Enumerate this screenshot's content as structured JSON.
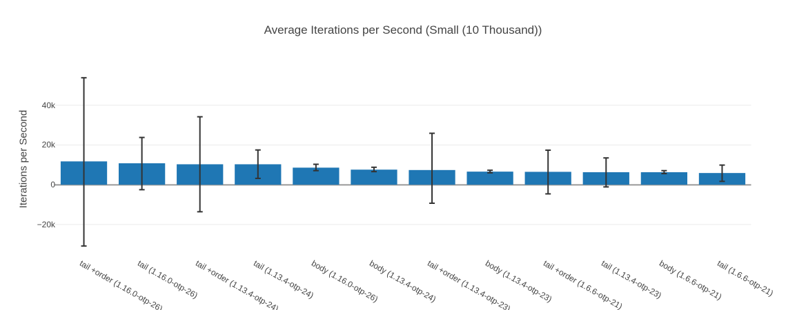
{
  "chart_data": {
    "type": "bar",
    "title": "Average Iterations per Second (Small (10 Thousand))",
    "xlabel": "",
    "ylabel": "Iterations per Second",
    "categories": [
      "tail +order (1.16.0-otp-26)",
      "tail (1.16.0-otp-26)",
      "tail +order (1.13.4-otp-24)",
      "tail (1.13.4-otp-24)",
      "body (1.16.0-otp-26)",
      "body (1.13.4-otp-24)",
      "tail +order (1.13.4-otp-23)",
      "body (1.13.4-otp-23)",
      "tail +order (1.6.6-otp-21)",
      "tail (1.13.4-otp-23)",
      "body (1.6.6-otp-21)",
      "tail (1.6.6-otp-21)"
    ],
    "values": [
      11750,
      10800,
      10300,
      10300,
      8600,
      7600,
      7400,
      6600,
      6500,
      6300,
      6300,
      5900
    ],
    "error_plus": [
      42100,
      13000,
      23900,
      7200,
      1700,
      1200,
      18500,
      700,
      10900,
      7200,
      800,
      4000
    ],
    "error_minus": [
      42600,
      13300,
      23900,
      7100,
      1500,
      1000,
      16700,
      600,
      11100,
      7400,
      700,
      4200
    ],
    "y_ticks": [
      {
        "value": 40000,
        "label": "40k"
      },
      {
        "value": 20000,
        "label": "20k"
      },
      {
        "value": 0,
        "label": "0"
      },
      {
        "value": -20000,
        "label": "−20k"
      }
    ],
    "ylim": [
      -36000,
      59000
    ],
    "x_tick_angle_deg": 30,
    "grid": true,
    "legend": "none",
    "colors": {
      "bar": "#1f77b4",
      "error_bar": "#333333",
      "grid_line": "#ebebeb",
      "zero_line": "#999999",
      "text": "#444444",
      "background": "#ffffff"
    }
  }
}
